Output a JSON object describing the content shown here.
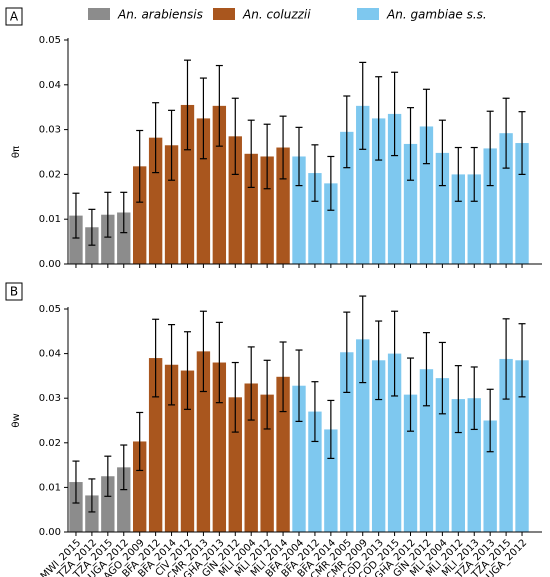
{
  "chart_data": [
    {
      "type": "bar",
      "panel": "A",
      "ylabel": "θπ",
      "ylim": [
        0,
        0.05
      ],
      "yticks": [
        {
          "value": 0,
          "label": "0.00"
        },
        {
          "value": 0.01,
          "label": "0.01"
        },
        {
          "value": 0.02,
          "label": "0.02"
        },
        {
          "value": 0.03,
          "label": "0.03"
        },
        {
          "value": 0.04,
          "label": "0.04"
        },
        {
          "value": 0.05,
          "label": "0.05"
        }
      ],
      "categories": [
        null,
        null,
        null,
        null,
        null,
        null,
        null,
        null,
        null,
        null,
        null,
        null,
        null,
        null,
        null,
        null,
        null,
        null,
        null,
        null,
        null,
        null,
        null,
        null,
        null,
        null,
        null,
        null,
        null
      ],
      "series": [
        {
          "name": "An. arabiensis",
          "color": "#8c8c8c",
          "values": [
            0.0108,
            0.0082,
            0.011,
            0.0115,
            null,
            null,
            null,
            null,
            null,
            null,
            null,
            null,
            null,
            null,
            null,
            null,
            null,
            null,
            null,
            null,
            null,
            null,
            null,
            null,
            null,
            null,
            null,
            null,
            null
          ],
          "errors": [
            0.005,
            0.004,
            0.005,
            0.0045,
            null,
            null,
            null,
            null,
            null,
            null,
            null,
            null,
            null,
            null,
            null,
            null,
            null,
            null,
            null,
            null,
            null,
            null,
            null,
            null,
            null,
            null,
            null,
            null,
            null
          ]
        },
        {
          "name": "An. coluzzii",
          "color": "#a9561e",
          "values": [
            null,
            null,
            null,
            null,
            0.0218,
            0.0282,
            0.0265,
            0.0355,
            0.0325,
            0.0353,
            0.0285,
            0.0246,
            0.024,
            0.026,
            null,
            null,
            null,
            null,
            null,
            null,
            null,
            null,
            null,
            null,
            null,
            null,
            null,
            null,
            null
          ],
          "errors": [
            null,
            null,
            null,
            null,
            0.008,
            0.0078,
            0.0078,
            0.01,
            0.009,
            0.009,
            0.0085,
            0.0075,
            0.0072,
            0.007,
            null,
            null,
            null,
            null,
            null,
            null,
            null,
            null,
            null,
            null,
            null,
            null,
            null,
            null,
            null
          ]
        },
        {
          "name": "An. gambiae s.s.",
          "color": "#7ec8ef",
          "values": [
            null,
            null,
            null,
            null,
            null,
            null,
            null,
            null,
            null,
            null,
            null,
            null,
            null,
            null,
            0.024,
            0.0203,
            0.018,
            0.0295,
            0.0353,
            0.0325,
            0.0335,
            0.0268,
            0.0307,
            0.0248,
            0.02,
            0.02,
            0.0258,
            0.0292,
            0.027
          ],
          "errors": [
            null,
            null,
            null,
            null,
            null,
            null,
            null,
            null,
            null,
            null,
            null,
            null,
            null,
            null,
            0.0065,
            0.0063,
            0.006,
            0.008,
            0.0097,
            0.0093,
            0.0093,
            0.0081,
            0.0083,
            0.0073,
            0.006,
            0.006,
            0.0083,
            0.0078,
            0.007
          ]
        }
      ]
    },
    {
      "type": "bar",
      "panel": "B",
      "ylabel": "θw",
      "ylim": [
        0,
        0.05
      ],
      "yticks": [
        {
          "value": 0,
          "label": "0.00"
        },
        {
          "value": 0.01,
          "label": "0.01"
        },
        {
          "value": 0.02,
          "label": "0.02"
        },
        {
          "value": 0.03,
          "label": "0.03"
        },
        {
          "value": 0.04,
          "label": "0.04"
        },
        {
          "value": 0.05,
          "label": "0.05"
        }
      ],
      "categories": [
        "MWI_2015",
        "TZA_2012",
        "TZA_2015",
        "UGA_2012",
        "AGO_2009",
        "BFA_2012",
        "BFA_2014",
        "CIV_2012",
        "CMR_2013",
        "GHA_2013",
        "GIN_2012",
        "MLI_2004",
        "MLI_2012",
        "MLI_2014",
        "BFA_2004",
        "BFA_2012",
        "BFA_2014",
        "CMR_2005",
        "CMR_2009",
        "COD_2013",
        "COD_2015",
        "GHA_2012",
        "GIN_2012",
        "MLI_2004",
        "MLI_2012",
        "MLI_2013",
        "TZA_2013",
        "TZA_2015",
        "UGA_2012"
      ],
      "series": [
        {
          "color": "#8c8c8c",
          "values": [
            0.0112,
            0.0082,
            0.0125,
            0.0145,
            null,
            null,
            null,
            null,
            null,
            null,
            null,
            null,
            null,
            null,
            null,
            null,
            null,
            null,
            null,
            null,
            null,
            null,
            null,
            null,
            null,
            null,
            null,
            null,
            null
          ],
          "errors": [
            0.0047,
            0.0037,
            0.0045,
            0.005,
            null,
            null,
            null,
            null,
            null,
            null,
            null,
            null,
            null,
            null,
            null,
            null,
            null,
            null,
            null,
            null,
            null,
            null,
            null,
            null,
            null,
            null,
            null,
            null,
            null
          ]
        },
        {
          "color": "#a9561e",
          "values": [
            null,
            null,
            null,
            null,
            0.0203,
            0.039,
            0.0375,
            0.0362,
            0.0405,
            0.038,
            0.0302,
            0.0333,
            0.0308,
            0.0348,
            null,
            null,
            null,
            null,
            null,
            null,
            null,
            null,
            null,
            null,
            null,
            null,
            null,
            null,
            null
          ],
          "errors": [
            null,
            null,
            null,
            null,
            0.0065,
            0.0087,
            0.009,
            0.0087,
            0.009,
            0.009,
            0.0078,
            0.0082,
            0.0077,
            0.0078,
            null,
            null,
            null,
            null,
            null,
            null,
            null,
            null,
            null,
            null,
            null,
            null,
            null,
            null,
            null
          ]
        },
        {
          "color": "#7ec8ef",
          "values": [
            null,
            null,
            null,
            null,
            null,
            null,
            null,
            null,
            null,
            null,
            null,
            null,
            null,
            null,
            0.0328,
            0.027,
            0.023,
            0.0403,
            0.0432,
            0.0385,
            0.04,
            0.0308,
            0.0365,
            0.0345,
            0.0298,
            0.03,
            0.025,
            0.0388,
            0.0385
          ],
          "errors": [
            null,
            null,
            null,
            null,
            null,
            null,
            null,
            null,
            null,
            null,
            null,
            null,
            null,
            null,
            0.008,
            0.0067,
            0.0065,
            0.009,
            0.0097,
            0.0088,
            0.0095,
            0.0082,
            0.0082,
            0.008,
            0.0075,
            0.007,
            0.007,
            0.009,
            0.0082
          ]
        }
      ]
    }
  ]
}
